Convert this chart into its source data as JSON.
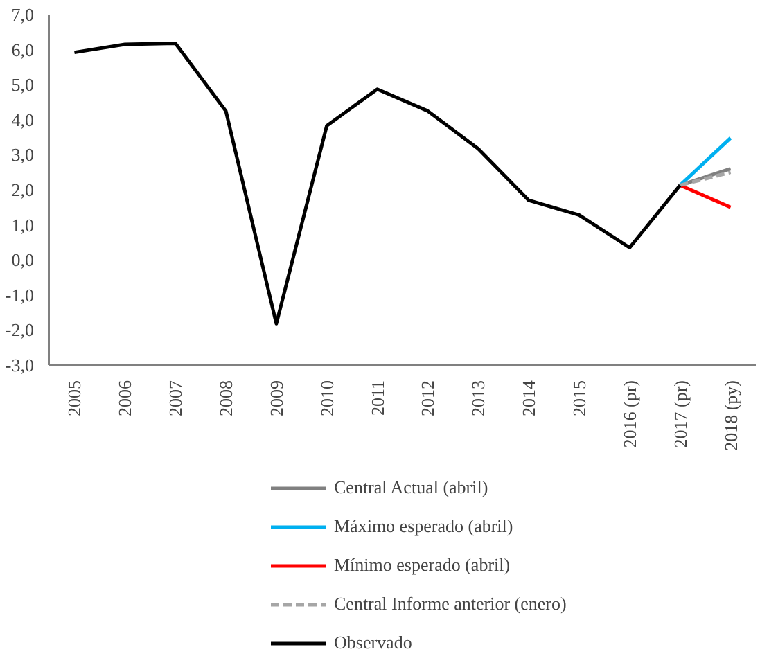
{
  "chart_data": {
    "type": "line",
    "categories": [
      "2005",
      "2006",
      "2007",
      "2008",
      "2009",
      "2010",
      "2011",
      "2012",
      "2013",
      "2014",
      "2015",
      "2016 (pr)",
      "2017 (pr)",
      "2018 (py)"
    ],
    "series": [
      {
        "name": "Central Actual (abril)",
        "color": "#808080",
        "values": [
          null,
          null,
          null,
          null,
          null,
          null,
          null,
          null,
          null,
          null,
          null,
          null,
          2.13,
          2.6
        ]
      },
      {
        "name": "Máximo esperado (abril)",
        "color": "#00b0f0",
        "values": [
          null,
          null,
          null,
          null,
          null,
          null,
          null,
          null,
          null,
          null,
          null,
          null,
          2.13,
          3.48
        ]
      },
      {
        "name": "Mínimo esperado (abril)",
        "color": "#ff0000",
        "values": [
          null,
          null,
          null,
          null,
          null,
          null,
          null,
          null,
          null,
          null,
          null,
          null,
          2.13,
          1.5
        ]
      },
      {
        "name": "Central Informe anterior (enero)",
        "color": "#a6a6a6",
        "line_style": "dashed",
        "values": [
          null,
          null,
          null,
          null,
          null,
          null,
          null,
          null,
          null,
          null,
          null,
          null,
          2.13,
          2.5
        ]
      },
      {
        "name": "Observado",
        "color": "#000000",
        "values": [
          5.92,
          6.15,
          6.18,
          4.25,
          -1.82,
          3.83,
          4.87,
          4.25,
          3.17,
          1.7,
          1.28,
          0.35,
          2.13,
          null
        ]
      }
    ],
    "ylim": [
      -3,
      7
    ],
    "yticks": [
      {
        "value": -3,
        "label": "-3,0"
      },
      {
        "value": -2,
        "label": "-2,0"
      },
      {
        "value": -1,
        "label": "-1,0"
      },
      {
        "value": 0,
        "label": "0,0"
      },
      {
        "value": 1,
        "label": "1,0"
      },
      {
        "value": 2,
        "label": "2,0"
      },
      {
        "value": 3,
        "label": "3,0"
      },
      {
        "value": 4,
        "label": "4,0"
      },
      {
        "value": 5,
        "label": "5,0"
      },
      {
        "value": 6,
        "label": "6,0"
      },
      {
        "value": 7,
        "label": "7,0"
      }
    ],
    "grid": false,
    "legend": "bottom",
    "line_style": "solid",
    "marker": "none"
  }
}
